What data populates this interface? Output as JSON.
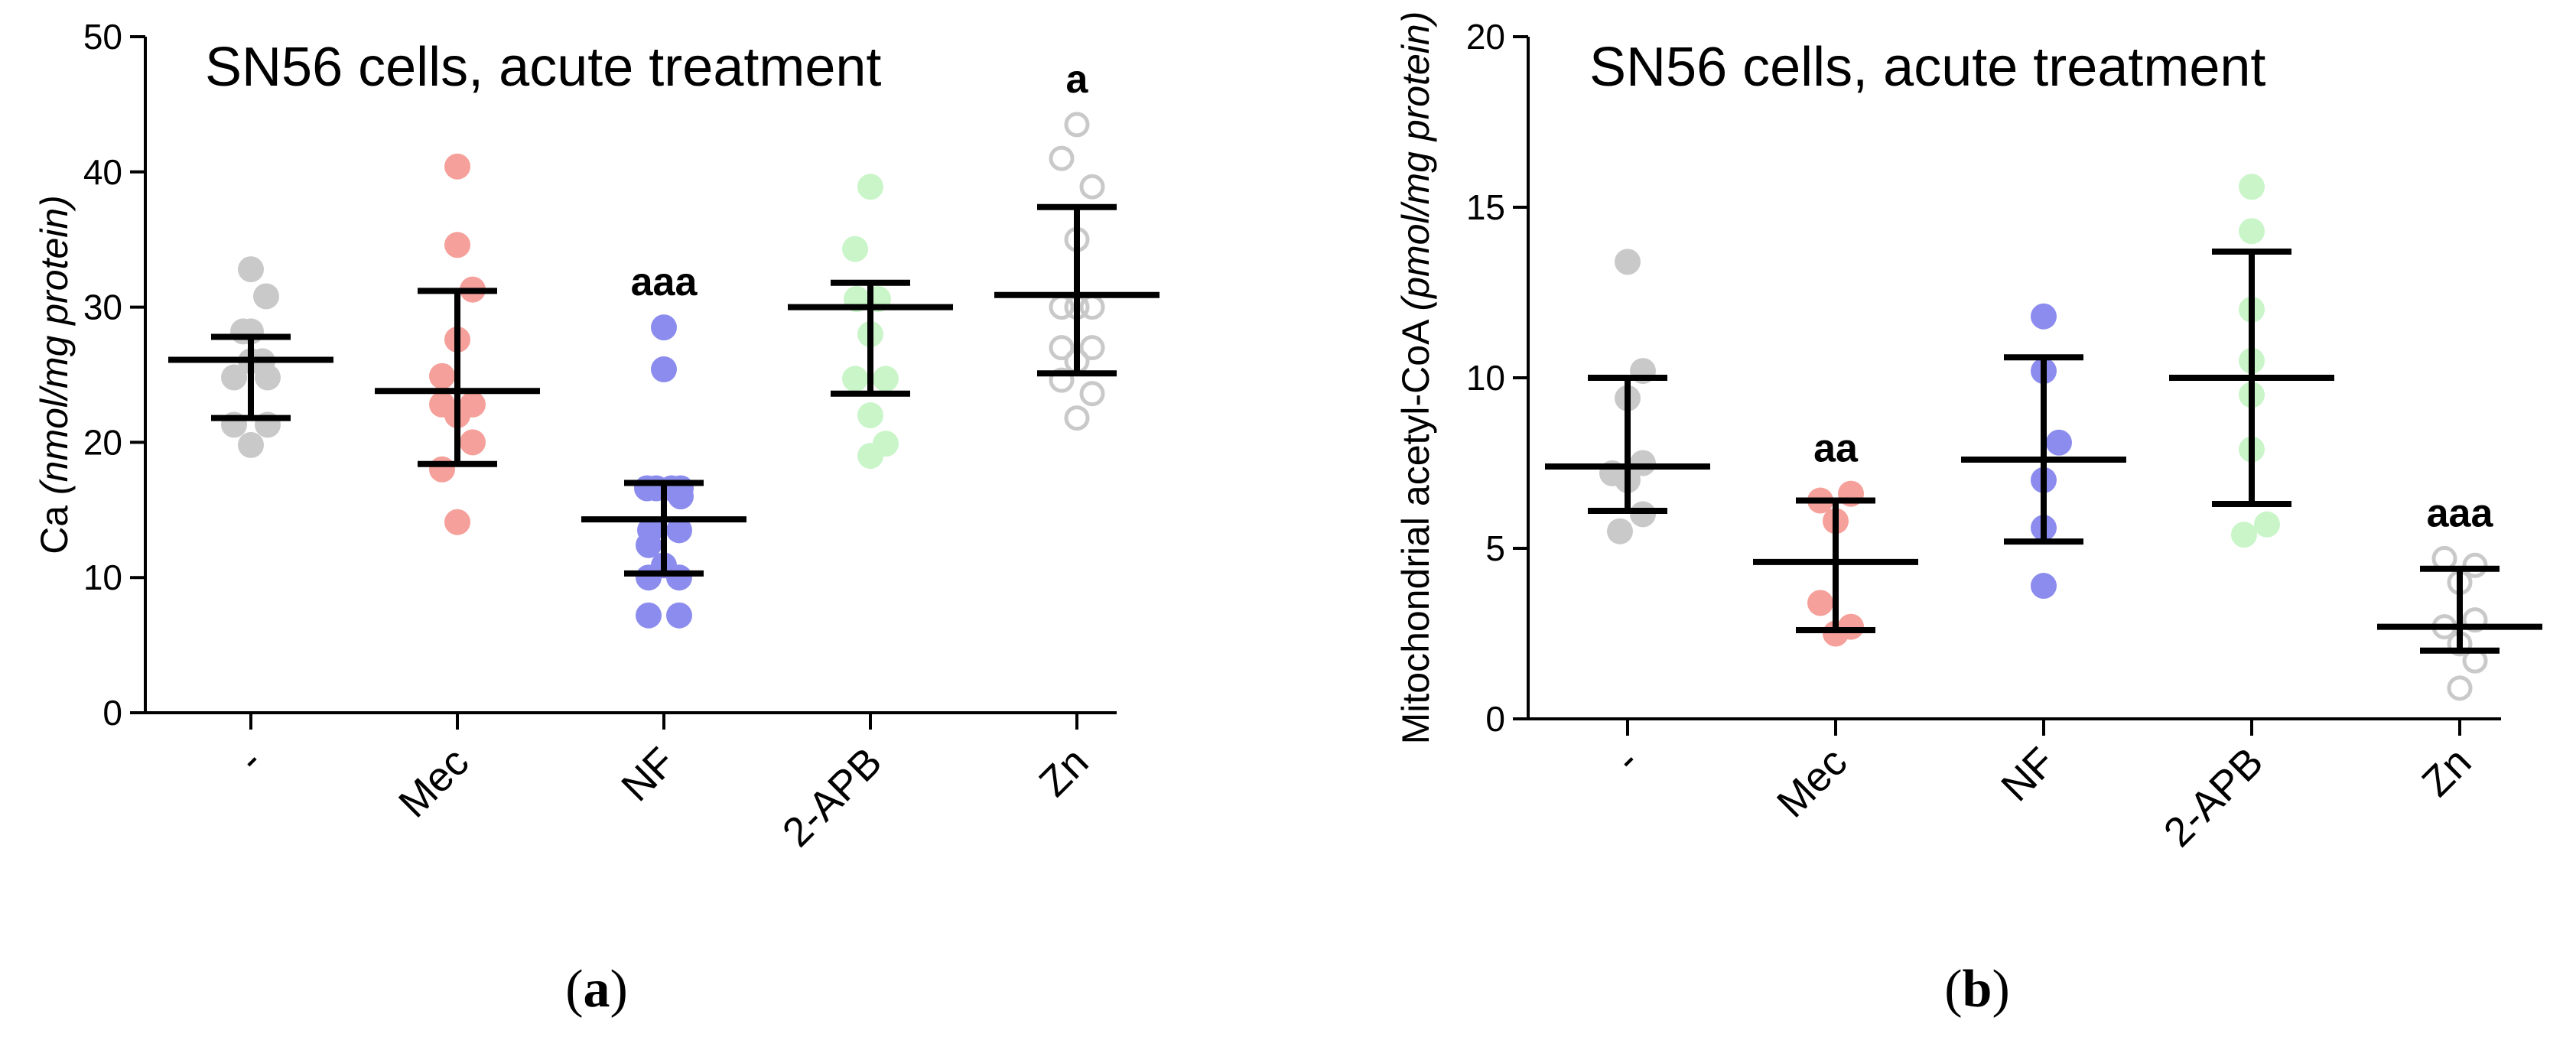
{
  "chart_data": [
    {
      "panel": "(a)",
      "panel_letter": "a",
      "type": "scatter",
      "title": "SN56 cells, acute treatment",
      "ylabel_main": "Ca ",
      "ylabel_italic": "(nmol/mg protein)",
      "ylim": [
        0,
        50
      ],
      "yticks": [
        0,
        10,
        20,
        30,
        40,
        50
      ],
      "ytick_labels": [
        "0",
        "10",
        "20",
        "30",
        "40",
        "50"
      ],
      "categories": [
        "-",
        "Mec",
        "NF",
        "2-APB",
        "Zn"
      ],
      "groups": [
        {
          "name": "-",
          "color": "#c9c9c9",
          "hollow": false,
          "points": [
            [
              -0.22,
              21.3
            ],
            [
              0.22,
              21.3
            ],
            [
              0.0,
              19.8
            ],
            [
              -0.22,
              24.8
            ],
            [
              0.22,
              24.8
            ],
            [
              0.0,
              26.0
            ],
            [
              0.15,
              26.0
            ],
            [
              0.0,
              28.2
            ],
            [
              -0.1,
              28.2
            ],
            [
              0.0,
              32.8
            ],
            [
              0.2,
              30.8
            ]
          ],
          "mean": 26.1,
          "upper": 27.8,
          "lower": 21.8,
          "label": ""
        },
        {
          "name": "Mec",
          "color": "#f5a09a",
          "hollow": false,
          "points": [
            [
              0.0,
              40.4
            ],
            [
              0.0,
              34.6
            ],
            [
              0.2,
              31.3
            ],
            [
              0.0,
              27.6
            ],
            [
              -0.2,
              24.9
            ],
            [
              0.2,
              22.8
            ],
            [
              -0.2,
              22.8
            ],
            [
              0.0,
              22.0
            ],
            [
              0.2,
              20.0
            ],
            [
              -0.2,
              18.0
            ],
            [
              0.0,
              14.1
            ]
          ],
          "mean": 23.8,
          "upper": 31.2,
          "lower": 18.4,
          "label": ""
        },
        {
          "name": "NF",
          "color": "#8c8cee",
          "hollow": false,
          "points": [
            [
              0.0,
              28.5
            ],
            [
              0.0,
              25.4
            ],
            [
              -0.22,
              16.6
            ],
            [
              0.22,
              16.6
            ],
            [
              -0.1,
              16.6
            ],
            [
              0.1,
              16.6
            ],
            [
              0.22,
              16.0
            ],
            [
              -0.18,
              13.5
            ],
            [
              0.2,
              13.5
            ],
            [
              -0.2,
              12.4
            ],
            [
              0.0,
              10.9
            ],
            [
              -0.2,
              10.0
            ],
            [
              0.2,
              10.0
            ],
            [
              -0.2,
              7.2
            ],
            [
              0.2,
              7.2
            ]
          ],
          "mean": 14.3,
          "upper": 17.0,
          "lower": 10.3,
          "label": "aaa"
        },
        {
          "name": "2-APB",
          "color": "#c9f5c9",
          "hollow": false,
          "points": [
            [
              0.0,
              38.9
            ],
            [
              -0.2,
              34.3
            ],
            [
              -0.18,
              30.6
            ],
            [
              0.1,
              30.6
            ],
            [
              0.0,
              28.0
            ],
            [
              -0.2,
              24.7
            ],
            [
              0.2,
              24.7
            ],
            [
              0.0,
              22.0
            ],
            [
              0.2,
              19.9
            ],
            [
              0.0,
              19.0
            ]
          ],
          "mean": 30.0,
          "upper": 31.8,
          "lower": 23.6,
          "label": ""
        },
        {
          "name": "Zn",
          "color": "#c9c9c9",
          "hollow": true,
          "points": [
            [
              0.0,
              43.5
            ],
            [
              -0.2,
              41.0
            ],
            [
              0.2,
              38.9
            ],
            [
              0.0,
              35.0
            ],
            [
              -0.2,
              30.0
            ],
            [
              0.0,
              30.0
            ],
            [
              0.2,
              30.0
            ],
            [
              -0.2,
              27.0
            ],
            [
              0.2,
              27.0
            ],
            [
              0.0,
              26.0
            ],
            [
              -0.2,
              24.6
            ],
            [
              0.2,
              23.6
            ],
            [
              0.0,
              21.8
            ]
          ],
          "mean": 30.9,
          "upper": 37.4,
          "lower": 25.1,
          "label": "a"
        }
      ]
    },
    {
      "panel": "(b)",
      "panel_letter": "b",
      "type": "scatter",
      "title": "SN56 cells, acute treatment",
      "ylabel_main": "Mitochondrial acetyl-CoA ",
      "ylabel_italic": "(pmol/mg protein)",
      "ylim": [
        0,
        20
      ],
      "yticks": [
        0,
        5,
        10,
        15,
        20
      ],
      "ytick_labels": [
        "0",
        "5",
        "10",
        "15",
        "20"
      ],
      "categories": [
        "-",
        "Mec",
        "NF",
        "2-APB",
        "Zn"
      ],
      "groups": [
        {
          "name": "-",
          "color": "#c9c9c9",
          "hollow": false,
          "points": [
            [
              0.0,
              13.4
            ],
            [
              0.2,
              10.2
            ],
            [
              0.0,
              9.4
            ],
            [
              0.2,
              7.5
            ],
            [
              -0.2,
              7.2
            ],
            [
              0.0,
              7.0
            ],
            [
              0.2,
              6.0
            ],
            [
              -0.1,
              5.5
            ]
          ],
          "mean": 7.4,
          "upper": 10.0,
          "lower": 6.1,
          "label": ""
        },
        {
          "name": "Mec",
          "color": "#f5a09a",
          "hollow": false,
          "points": [
            [
              0.2,
              6.6
            ],
            [
              -0.2,
              6.4
            ],
            [
              0.0,
              5.8
            ],
            [
              -0.2,
              3.4
            ],
            [
              0.2,
              2.7
            ],
            [
              0.0,
              2.5
            ]
          ],
          "mean": 4.6,
          "upper": 6.4,
          "lower": 2.6,
          "label": "aa"
        },
        {
          "name": "NF",
          "color": "#8c8cee",
          "hollow": false,
          "points": [
            [
              0.0,
              11.8
            ],
            [
              0.0,
              10.2
            ],
            [
              0.2,
              8.1
            ],
            [
              0.0,
              7.0
            ],
            [
              0.0,
              5.6
            ],
            [
              0.0,
              3.9
            ]
          ],
          "mean": 7.6,
          "upper": 10.6,
          "lower": 5.2,
          "label": ""
        },
        {
          "name": "2-APB",
          "color": "#c9f5c9",
          "hollow": false,
          "points": [
            [
              0.0,
              15.6
            ],
            [
              0.0,
              14.3
            ],
            [
              0.0,
              12.0
            ],
            [
              0.0,
              10.5
            ],
            [
              0.0,
              9.5
            ],
            [
              0.0,
              7.9
            ],
            [
              0.2,
              5.7
            ],
            [
              -0.1,
              5.4
            ]
          ],
          "mean": 10.0,
          "upper": 13.7,
          "lower": 6.3,
          "label": ""
        },
        {
          "name": "Zn",
          "color": "#c9c9c9",
          "hollow": true,
          "points": [
            [
              -0.2,
              4.7
            ],
            [
              0.2,
              4.5
            ],
            [
              0.0,
              4.0
            ],
            [
              0.2,
              2.9
            ],
            [
              -0.2,
              2.7
            ],
            [
              0.0,
              2.2
            ],
            [
              0.2,
              1.7
            ],
            [
              0.0,
              0.9
            ]
          ],
          "mean": 2.7,
          "upper": 4.4,
          "lower": 2.0,
          "label": "aaa"
        }
      ]
    }
  ]
}
